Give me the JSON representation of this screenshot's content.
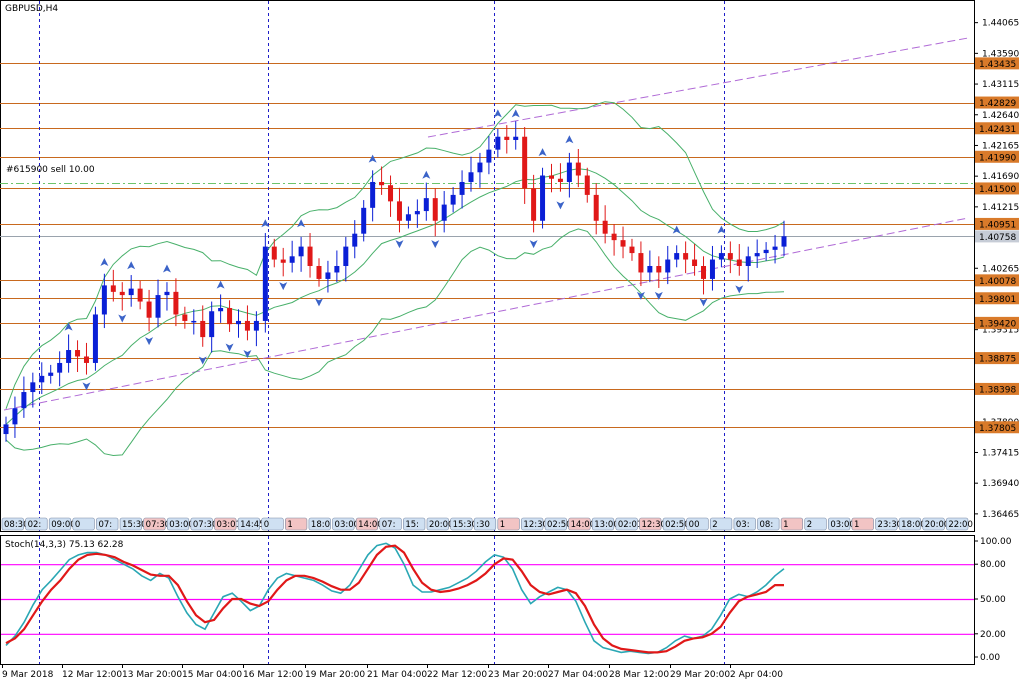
{
  "header": {
    "symbol_label": "GBPUSD,H4",
    "order_label": "#615900 sell 10.00",
    "stoch_label": "Stoch(14,3,3) 75.13 62.28"
  },
  "colors": {
    "bull_candle": "#0a1fd6",
    "bear_candle": "#e01818",
    "level_line": "#c8691e",
    "level_tag_fill": "#d97a2a",
    "current_tag_fill": "#c6ccd6",
    "bollinger": "#48b06a",
    "channel": "#b06ad6",
    "order_line": "#6cc46c",
    "stoch_main": "#2aa7b4",
    "stoch_signal": "#e01818",
    "stoch_levels": "#ff00ff",
    "separator": "#1e1ec8"
  },
  "chart_data": [
    {
      "type": "candlestick",
      "title": "GBPUSD,H4",
      "ylim": [
        1.362,
        1.444
      ],
      "price_axis_ticks": [
        "1.44065",
        "1.43590",
        "1.43115",
        "1.42640",
        "1.42165",
        "1.41690",
        "1.41215",
        "1.40740",
        "1.40265",
        "1.39790",
        "1.39315",
        "1.38840",
        "1.38365",
        "1.37890",
        "1.37415",
        "1.36940",
        "1.36465"
      ],
      "price_level_labels": [
        {
          "label": "1.43435",
          "value": 1.43435
        },
        {
          "label": "1.42829",
          "value": 1.42829
        },
        {
          "label": "1.42431",
          "value": 1.42431
        },
        {
          "label": "1.41990",
          "value": 1.4199
        },
        {
          "label": "1.41500",
          "value": 1.415
        },
        {
          "label": "1.40951",
          "value": 1.40951
        },
        {
          "label": "1.40078",
          "value": 1.40078
        },
        {
          "label": "1.39801",
          "value": 1.39801
        },
        {
          "label": "1.39420",
          "value": 1.3942
        },
        {
          "label": "1.38875",
          "value": 1.38875
        },
        {
          "label": "1.38398",
          "value": 1.38398
        },
        {
          "label": "1.37805",
          "value": 1.37805
        }
      ],
      "current_price": {
        "label": "1.40758",
        "value": 1.40758
      },
      "order_line": {
        "label": "#615900 sell 10.00",
        "value": 1.4158
      },
      "date_axis_labels": [
        "9 Mar 2018",
        "12 Mar 12:00",
        "13 Mar 20:00",
        "15 Mar 04:00",
        "16 Mar 12:00",
        "19 Mar 20:00",
        "21 Mar 04:00",
        "22 Mar 12:00",
        "23 Mar 20:00",
        "27 Mar 04:00",
        "28 Mar 12:00",
        "29 Mar 20:00",
        "2 Apr 04:00"
      ],
      "time_tags": [
        "08:30",
        "02:",
        "09:00",
        "0",
        "07:",
        "15:30",
        "07:30",
        "03:00",
        "07:30",
        "03:01",
        "14:45",
        "0",
        "1",
        "18:0",
        "03:00",
        "14:00",
        "07:",
        "15:",
        "20:00",
        "15:30",
        ":30",
        "1",
        "12:30",
        "02:50",
        "14:00",
        "13:00",
        "02:01",
        "12:30",
        "02:50",
        "00",
        "2",
        "03:",
        "08:",
        "1",
        "2",
        "03:00",
        "1",
        "23:30",
        "18:00",
        "20:00",
        "22:00"
      ],
      "closes": [
        1.3785,
        1.381,
        1.3835,
        1.385,
        1.386,
        1.3865,
        1.388,
        1.39,
        1.389,
        1.388,
        1.3955,
        1.4,
        1.399,
        1.3985,
        1.3995,
        1.3975,
        1.395,
        1.3985,
        1.399,
        1.3955,
        1.3945,
        1.3945,
        1.392,
        1.396,
        1.3965,
        1.394,
        1.3945,
        1.393,
        1.3945,
        1.406,
        1.404,
        1.4035,
        1.4045,
        1.406,
        1.403,
        1.401,
        1.402,
        1.403,
        1.406,
        1.408,
        1.412,
        1.416,
        1.4155,
        1.413,
        1.41,
        1.411,
        1.4115,
        1.4135,
        1.41,
        1.4125,
        1.414,
        1.416,
        1.4175,
        1.419,
        1.421,
        1.423,
        1.4225,
        1.423,
        1.415,
        1.41,
        1.417,
        1.4165,
        1.416,
        1.419,
        1.417,
        1.414,
        1.41,
        1.408,
        1.407,
        1.406,
        1.405,
        1.402,
        1.403,
        1.402,
        1.404,
        1.405,
        1.404,
        1.403,
        1.401,
        1.404,
        1.405,
        1.404,
        1.403,
        1.4045,
        1.405,
        1.4055,
        1.406,
        1.4076
      ],
      "series": [
        {
          "name": "Stoch(14,3,3) main",
          "last": 75.13
        },
        {
          "name": "Stoch(14,3,3) signal",
          "last": 62.28
        }
      ]
    },
    {
      "type": "line",
      "title": "Stoch(14,3,3) 75.13 62.28",
      "ylim": [
        0,
        100
      ],
      "axis_ticks": [
        "100.00",
        "80.00",
        "50.00",
        "20.00",
        "0.00"
      ],
      "levels": [
        80,
        50,
        20
      ],
      "main": [
        10,
        18,
        30,
        45,
        58,
        66,
        75,
        84,
        88,
        90,
        90,
        88,
        84,
        80,
        76,
        70,
        66,
        72,
        68,
        52,
        38,
        28,
        24,
        38,
        52,
        55,
        48,
        40,
        44,
        58,
        68,
        72,
        70,
        68,
        66,
        62,
        57,
        55,
        62,
        75,
        88,
        96,
        98,
        94,
        80,
        62,
        56,
        56,
        58,
        60,
        64,
        68,
        74,
        82,
        88,
        86,
        76,
        58,
        46,
        52,
        56,
        60,
        58,
        48,
        30,
        14,
        8,
        6,
        4,
        5,
        4,
        3,
        4,
        8,
        14,
        18,
        16,
        18,
        24,
        36,
        50,
        54,
        52,
        56,
        62,
        70,
        76
      ],
      "signal": [
        12,
        16,
        24,
        36,
        48,
        58,
        66,
        76,
        84,
        88,
        89,
        88,
        86,
        82,
        79,
        75,
        71,
        70,
        70,
        62,
        48,
        36,
        30,
        32,
        42,
        50,
        50,
        46,
        44,
        48,
        58,
        66,
        70,
        70,
        68,
        65,
        61,
        58,
        58,
        64,
        76,
        88,
        95,
        96,
        90,
        76,
        64,
        58,
        56,
        57,
        59,
        62,
        66,
        72,
        80,
        85,
        84,
        74,
        62,
        56,
        54,
        56,
        58,
        55,
        44,
        28,
        16,
        10,
        7,
        6,
        5,
        4,
        4,
        5,
        9,
        14,
        16,
        17,
        20,
        26,
        38,
        48,
        52,
        54,
        56,
        62,
        62
      ]
    }
  ]
}
